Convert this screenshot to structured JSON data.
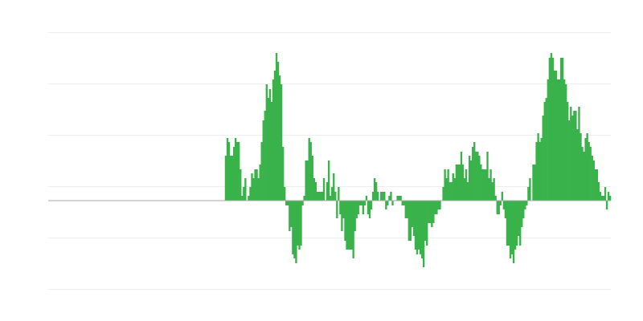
{
  "chart_data": {
    "type": "bar",
    "title": "",
    "xlabel": "",
    "ylabel": "",
    "ylim": [
      -130,
      230
    ],
    "gridlines": [
      210,
      146,
      82,
      18,
      -46,
      -110
    ],
    "grid": true,
    "colors": {
      "bar": "#39b24a",
      "grid": "#eeeeee",
      "zero_line": "#aaaaaa"
    },
    "values": [
      0,
      0,
      0,
      0,
      0,
      0,
      0,
      0,
      0,
      0,
      0,
      0,
      0,
      0,
      0,
      0,
      0,
      0,
      0,
      0,
      0,
      0,
      0,
      0,
      0,
      0,
      0,
      0,
      0,
      0,
      0,
      0,
      0,
      0,
      0,
      0,
      0,
      0,
      0,
      0,
      0,
      0,
      0,
      0,
      0,
      0,
      0,
      0,
      0,
      0,
      0,
      0,
      0,
      0,
      0,
      0,
      0,
      0,
      0,
      0,
      0,
      0,
      0,
      0,
      0,
      0,
      0,
      0,
      0,
      0,
      0,
      0,
      0,
      0,
      0,
      0,
      0,
      0,
      0,
      0,
      0,
      0,
      0,
      0,
      0,
      0,
      0,
      0,
      0,
      0,
      0,
      0,
      0,
      0,
      0,
      0,
      0,
      0,
      0,
      0,
      0,
      0,
      0,
      0,
      0,
      0,
      0,
      0,
      56,
      78,
      73,
      56,
      56,
      67,
      78,
      73,
      73,
      39,
      6,
      17,
      28,
      0,
      6,
      17,
      34,
      28,
      39,
      39,
      28,
      45,
      73,
      100,
      112,
      145,
      128,
      139,
      123,
      151,
      162,
      184,
      173,
      156,
      145,
      67,
      17,
      -6,
      -6,
      -38,
      -33,
      -67,
      -72,
      -78,
      -56,
      -61,
      -56,
      -6,
      6,
      50,
      50,
      78,
      73,
      56,
      28,
      23,
      11,
      11,
      11,
      11,
      28,
      0,
      23,
      50,
      6,
      17,
      34,
      11,
      -22,
      17,
      -17,
      -38,
      -22,
      -50,
      -61,
      -61,
      -61,
      -61,
      -72,
      -38,
      -22,
      -17,
      -6,
      -6,
      -17,
      -6,
      6,
      -17,
      -22,
      -11,
      11,
      28,
      23,
      11,
      0,
      11,
      11,
      11,
      -11,
      -6,
      6,
      11,
      -6,
      0,
      0,
      6,
      6,
      6,
      -6,
      -6,
      -22,
      -22,
      -50,
      -50,
      -33,
      -44,
      -61,
      -67,
      -61,
      -67,
      -72,
      -83,
      -50,
      -56,
      -28,
      -28,
      -33,
      -28,
      -17,
      -17,
      -11,
      -11,
      0,
      17,
      39,
      28,
      39,
      23,
      23,
      34,
      28,
      45,
      45,
      45,
      61,
      45,
      28,
      39,
      23,
      56,
      50,
      67,
      73,
      61,
      61,
      56,
      45,
      39,
      39,
      39,
      61,
      28,
      39,
      23,
      28,
      6,
      -17,
      -17,
      -6,
      11,
      -11,
      -22,
      -56,
      -56,
      -72,
      -67,
      -78,
      -61,
      -56,
      -44,
      -56,
      -33,
      -22,
      -11,
      -6,
      17,
      28,
      0,
      45,
      45,
      73,
      84,
      73,
      78,
      106,
      123,
      128,
      151,
      178,
      184,
      178,
      162,
      162,
      151,
      151,
      178,
      178,
      151,
      145,
      123,
      100,
      117,
      106,
      112,
      112,
      89,
      117,
      84,
      67,
      61,
      78,
      84,
      73,
      67,
      56,
      50,
      39,
      39,
      23,
      11,
      6,
      6,
      17,
      -11,
      11,
      6
    ]
  }
}
